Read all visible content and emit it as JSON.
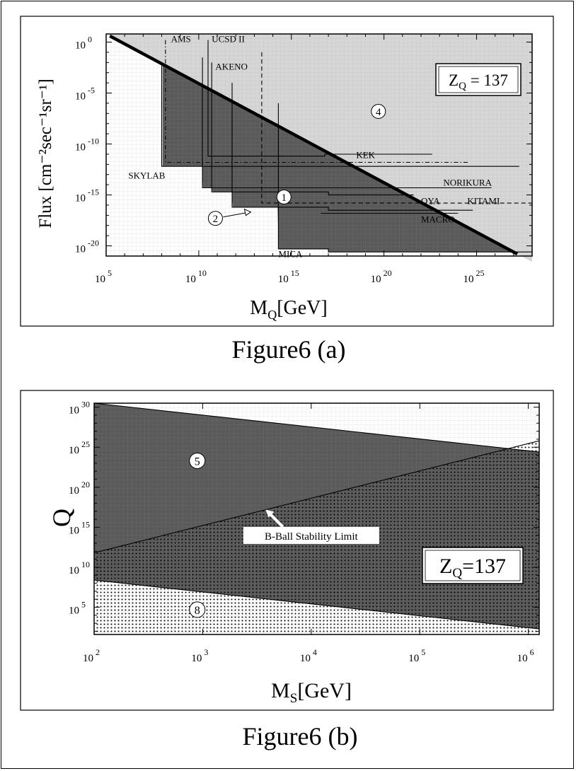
{
  "chart_data": [
    {
      "type": "area",
      "caption": "Figure6 (a)",
      "xlabel_main": "M",
      "xlabel_sub": "Q",
      "xlabel_tail": "[GeV]",
      "ylabel": "Flux [cm⁻²sec⁻¹sr⁻¹]",
      "x_log_range": [
        5,
        28
      ],
      "y_log_range": [
        -21,
        0.8
      ],
      "x_ticks": [
        {
          "base": "10",
          "exp": "5",
          "v": 5
        },
        {
          "base": "10",
          "exp": "10",
          "v": 10
        },
        {
          "base": "10",
          "exp": "15",
          "v": 15
        },
        {
          "base": "10",
          "exp": "20",
          "v": 20
        },
        {
          "base": "10",
          "exp": "25",
          "v": 25
        }
      ],
      "y_ticks": [
        {
          "base": "10",
          "exp": "0",
          "v": 0
        },
        {
          "base": "10",
          "exp": "-5",
          "v": -5
        },
        {
          "base": "10",
          "exp": "-10",
          "v": -10
        },
        {
          "base": "10",
          "exp": "-15",
          "v": -15
        },
        {
          "base": "10",
          "exp": "-20",
          "v": -20
        }
      ],
      "legend_box": {
        "main": "Z",
        "sub": "Q",
        "tail": " = 137"
      },
      "colors": {
        "light_region": "#d6d6d6",
        "dark_region": "#5a5a5a"
      },
      "bound_line": {
        "points": [
          [
            5.2,
            0.6
          ],
          [
            27.2,
            -20.8
          ]
        ]
      },
      "experiments": [
        {
          "label": "AMS",
          "points": [
            [
              8.2,
              0.2
            ],
            [
              8.2,
              -11.8
            ],
            [
              24.6,
              -11.8
            ]
          ],
          "dash": "6,3,1.5,3"
        },
        {
          "label": "UCSD II",
          "points": [
            [
              10.5,
              0.2
            ],
            [
              10.5,
              -11.2
            ],
            [
              16.8,
              -11.2
            ],
            [
              16.8,
              -11.0
            ],
            [
              22.6,
              -11.0
            ]
          ],
          "dash": ""
        },
        {
          "label": "AKENO",
          "points": [
            [
              13.4,
              -1.0
            ],
            [
              13.4,
              -15.8
            ],
            [
              28.0,
              -15.8
            ]
          ],
          "dash": "6,4"
        },
        {
          "label": "SKYLAB",
          "points": [
            [
              8.0,
              -2.0
            ],
            [
              8.0,
              -12.2
            ],
            [
              27.3,
              -12.2
            ]
          ],
          "dash": ""
        },
        {
          "label": "NORIKURA",
          "points": [
            [
              10.2,
              -1.5
            ],
            [
              10.2,
              -14.3
            ],
            [
              25.8,
              -14.3
            ]
          ],
          "dash": ""
        },
        {
          "label": "OYA",
          "points": [
            [
              10.7,
              -2.0
            ],
            [
              10.7,
              -14.7
            ],
            [
              17.0,
              -14.7
            ],
            [
              17.0,
              -15.0
            ],
            [
              21.6,
              -15.0
            ]
          ],
          "dash": ""
        },
        {
          "label": "KITAMI",
          "points": [
            [
              11.8,
              -4.0
            ],
            [
              11.8,
              -16.2
            ],
            [
              17.0,
              -16.2
            ],
            [
              17.0,
              -16.5
            ],
            [
              24.8,
              -16.5
            ]
          ],
          "dash": ""
        },
        {
          "label": "MACRO",
          "points": [
            [
              16.6,
              -16.8
            ],
            [
              24.0,
              -16.8
            ]
          ],
          "dash": ""
        },
        {
          "label": "MICA",
          "points": [
            [
              14.3,
              -6.0
            ],
            [
              14.3,
              -20.3
            ],
            [
              17.0,
              -20.3
            ],
            [
              17.0,
              -20.6
            ],
            [
              28.0,
              -20.6
            ]
          ],
          "dash": ""
        }
      ],
      "experiment_labels": [
        {
          "text": "AMS",
          "x": 8.5,
          "y": 0.0
        },
        {
          "text": "UCSD II",
          "x": 10.7,
          "y": 0.0
        },
        {
          "text": "AKENO",
          "x": 10.9,
          "y": -2.7
        },
        {
          "text": "SKYLAB",
          "x": 6.2,
          "y": -13.4
        },
        {
          "text": "KEK",
          "x": 18.5,
          "y": -11.4
        },
        {
          "text": "NORIKURA",
          "x": 23.2,
          "y": -14.1
        },
        {
          "text": "OYA",
          "x": 22.0,
          "y": -15.9
        },
        {
          "text": "KITAMI",
          "x": 24.5,
          "y": -15.9
        },
        {
          "text": "MACRO",
          "x": 22.0,
          "y": -17.7
        },
        {
          "text": "MICA",
          "x": 14.3,
          "y": -21.1
        }
      ],
      "region_labels": [
        {
          "text": "1",
          "x": 14.6,
          "y": -15.2
        },
        {
          "text": "2",
          "x": 10.9,
          "y": -17.3
        },
        {
          "text": "4",
          "x": 19.7,
          "y": -6.8
        }
      ]
    },
    {
      "type": "area",
      "caption": "Figure6 (b)",
      "xlabel_main": "M",
      "xlabel_sub": "S",
      "xlabel_tail": "[GeV]",
      "ylabel": "Q",
      "x_log_range": [
        2,
        6.1
      ],
      "y_log_range": [
        1.6,
        30.5
      ],
      "x_ticks": [
        {
          "base": "10",
          "exp": "2",
          "v": 2
        },
        {
          "base": "10",
          "exp": "3",
          "v": 3
        },
        {
          "base": "10",
          "exp": "4",
          "v": 4
        },
        {
          "base": "10",
          "exp": "5",
          "v": 5
        },
        {
          "base": "10",
          "exp": "6",
          "v": 6
        }
      ],
      "y_ticks": [
        {
          "base": "10",
          "exp": "5",
          "v": 5
        },
        {
          "base": "10",
          "exp": "10",
          "v": 10
        },
        {
          "base": "10",
          "exp": "15",
          "v": 15
        },
        {
          "base": "10",
          "exp": "20",
          "v": 20
        },
        {
          "base": "10",
          "exp": "25",
          "v": 25
        },
        {
          "base": "10",
          "exp": "30",
          "v": 30
        }
      ],
      "legend_box": {
        "main": "Z",
        "sub": "Q",
        "tail": "=137"
      },
      "colors": {
        "dark_region": "#5a5a5a",
        "dots": "#000000"
      },
      "upper_bound": [
        [
          2,
          30.5
        ],
        [
          6.1,
          24.4
        ]
      ],
      "lower_bound": [
        [
          2,
          8.4
        ],
        [
          6.1,
          2.3
        ]
      ],
      "stability_limit": [
        [
          2,
          11.8
        ],
        [
          6.1,
          25.8
        ]
      ],
      "annotation": {
        "text": "B-Ball Stability Limit",
        "x": 4.0,
        "y": 13.8,
        "target_x": 3.58,
        "target_y": 17.2
      },
      "region_labels": [
        {
          "text": "5",
          "x": 2.95,
          "y": 23.3
        },
        {
          "text": "8",
          "x": 2.95,
          "y": 4.7
        }
      ]
    }
  ]
}
